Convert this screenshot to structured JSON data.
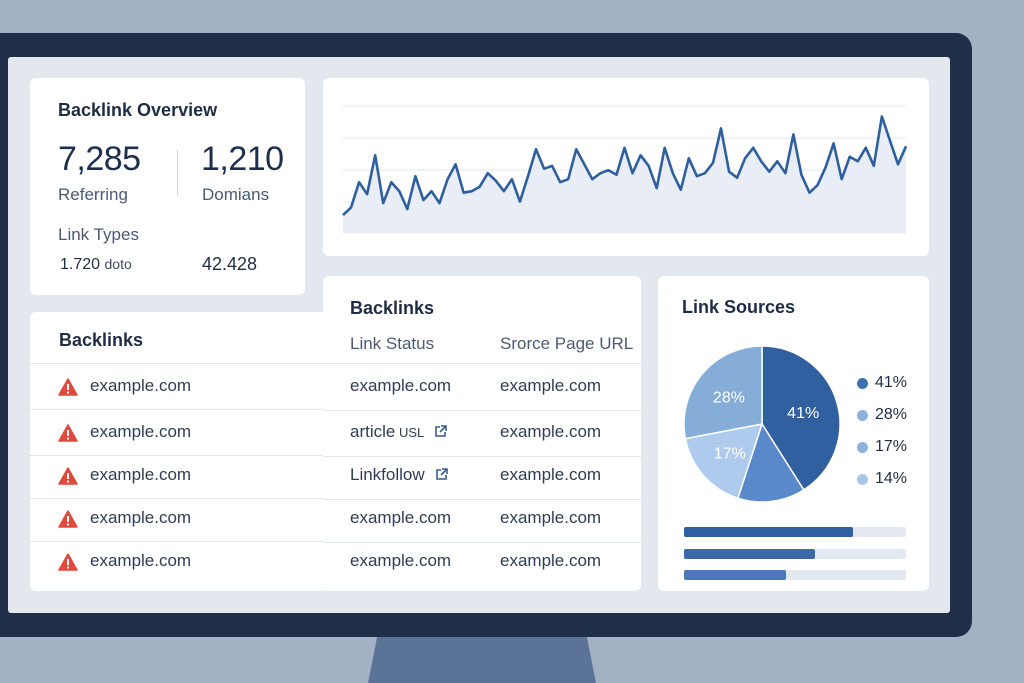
{
  "overview": {
    "title": "Backlink Overview",
    "metric1_value": "7,285",
    "metric1_label": "Referring",
    "metric2_value": "1,210",
    "metric2_label": "Domians",
    "link_types_label": "Link Types",
    "link_type1_value": "1.720",
    "link_type1_unit": "doto",
    "link_type2_value": "42.428"
  },
  "trend_chart": {
    "type": "line",
    "values": [
      12,
      17,
      34,
      26,
      52,
      20,
      34,
      28,
      16,
      38,
      22,
      28,
      20,
      36,
      46,
      27,
      28,
      31,
      40,
      35,
      28,
      36,
      21,
      38,
      56,
      43,
      45,
      34,
      36,
      56,
      46,
      36,
      40,
      42,
      39,
      57,
      40,
      52,
      45,
      30,
      57,
      40,
      29,
      50,
      38,
      40,
      47,
      70,
      41,
      37,
      50,
      57,
      48,
      41,
      48,
      40,
      66,
      39,
      27,
      32,
      44,
      60,
      36,
      51,
      48,
      57,
      45,
      78,
      62,
      46,
      58
    ],
    "line_color": "#2f5f9e",
    "fill_color": "#e9eef6"
  },
  "backlinks_left": {
    "title": "Backlinks",
    "rows": [
      "example.com",
      "example.com",
      "example.com",
      "example.com",
      "example.com"
    ]
  },
  "backlinks_right": {
    "title": "Backlinks",
    "col_status": "Link Status",
    "col_source": "Srorce Page URL",
    "rows": [
      {
        "status": "example.com",
        "status_suffix": "",
        "external": false,
        "source": "example.com"
      },
      {
        "status": "article",
        "status_suffix": "USL",
        "external": true,
        "source": "example.com"
      },
      {
        "status": "Linkfollow",
        "status_suffix": "",
        "external": true,
        "source": "example.com"
      },
      {
        "status": "example.com",
        "status_suffix": "",
        "external": false,
        "source": "example.com"
      },
      {
        "status": "example.com",
        "status_suffix": "",
        "external": false,
        "source": "example.com"
      }
    ]
  },
  "link_sources": {
    "title": "Link Sources",
    "pie": [
      {
        "label": "41%",
        "value": 41,
        "color": "#30609f"
      },
      {
        "label": "",
        "value": 14,
        "color": "#5a89cb"
      },
      {
        "label": "17%",
        "value": 17,
        "color": "#aecbee"
      },
      {
        "label": "28%",
        "value": 28,
        "color": "#86acd8"
      }
    ],
    "legend": [
      {
        "label": "41%",
        "color": "#3f6fb0"
      },
      {
        "label": "28%",
        "color": "#8fb2dc"
      },
      {
        "label": "17%",
        "color": "#8fb2dc"
      },
      {
        "label": "14%",
        "color": "#a9c6ea"
      }
    ],
    "bars": [
      {
        "value": 0.76,
        "color": "#30609f"
      },
      {
        "value": 0.59,
        "color": "#3a68aa"
      },
      {
        "value": 0.46,
        "color": "#4a78ba"
      }
    ]
  },
  "colors": {
    "warning": "#e04a3c",
    "external_link": "#3a5d8e"
  }
}
